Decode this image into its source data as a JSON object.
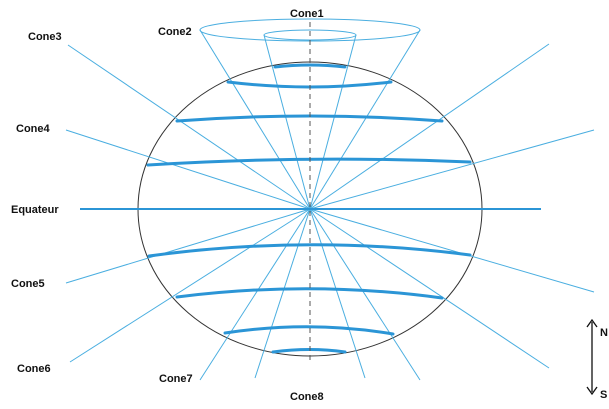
{
  "labels": {
    "cone1": "Cone1",
    "cone2": "Cone2",
    "cone3": "Cone3",
    "cone4": "Cone4",
    "equateur": "Equateur",
    "cone5": "Cone5",
    "cone6": "Cone6",
    "cone7": "Cone7",
    "cone8": "Cone8",
    "north": "N",
    "south": "S"
  },
  "colors": {
    "cone_line": "#4aaee0",
    "parallel": "#2b95d6",
    "ellipse": "#333333",
    "axis": "#555555",
    "text": "#111111"
  }
}
